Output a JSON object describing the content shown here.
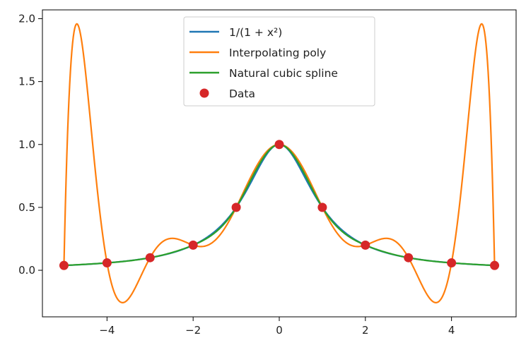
{
  "chart_data": {
    "type": "line",
    "title": "",
    "xlabel": "",
    "ylabel": "",
    "xlim": [
      -5.5,
      5.5
    ],
    "ylim": [
      -0.37,
      2.07
    ],
    "xticks": [
      -4,
      -2,
      0,
      2,
      4
    ],
    "yticks": [
      0.0,
      0.5,
      1.0,
      1.5,
      2.0
    ],
    "xtick_labels": [
      "−4",
      "−2",
      "0",
      "2",
      "4"
    ],
    "ytick_labels": [
      "0.0",
      "0.5",
      "1.0",
      "1.5",
      "2.0"
    ],
    "grid": false,
    "legend_position": "top-center",
    "series": [
      {
        "name": "1/(1 + x²)",
        "kind": "line",
        "color": "#1f77b4",
        "function": "runge",
        "domain": [
          -5,
          5
        ]
      },
      {
        "name": "Interpolating poly",
        "kind": "line",
        "color": "#ff7f0e",
        "function": "lagrange_interpolation_of_data",
        "domain": [
          -5,
          5
        ]
      },
      {
        "name": "Natural cubic spline",
        "kind": "line",
        "color": "#2ca02c",
        "function": "natural_cubic_spline_of_data",
        "domain": [
          -5,
          5
        ]
      },
      {
        "name": "Data",
        "kind": "markers",
        "color": "#d62728",
        "x": [
          -5,
          -4,
          -3,
          -2,
          -1,
          0,
          1,
          2,
          3,
          4,
          5
        ],
        "y": [
          0.0385,
          0.0588,
          0.1,
          0.2,
          0.5,
          1.0,
          0.5,
          0.2,
          0.1,
          0.0588,
          0.0385
        ]
      }
    ]
  }
}
